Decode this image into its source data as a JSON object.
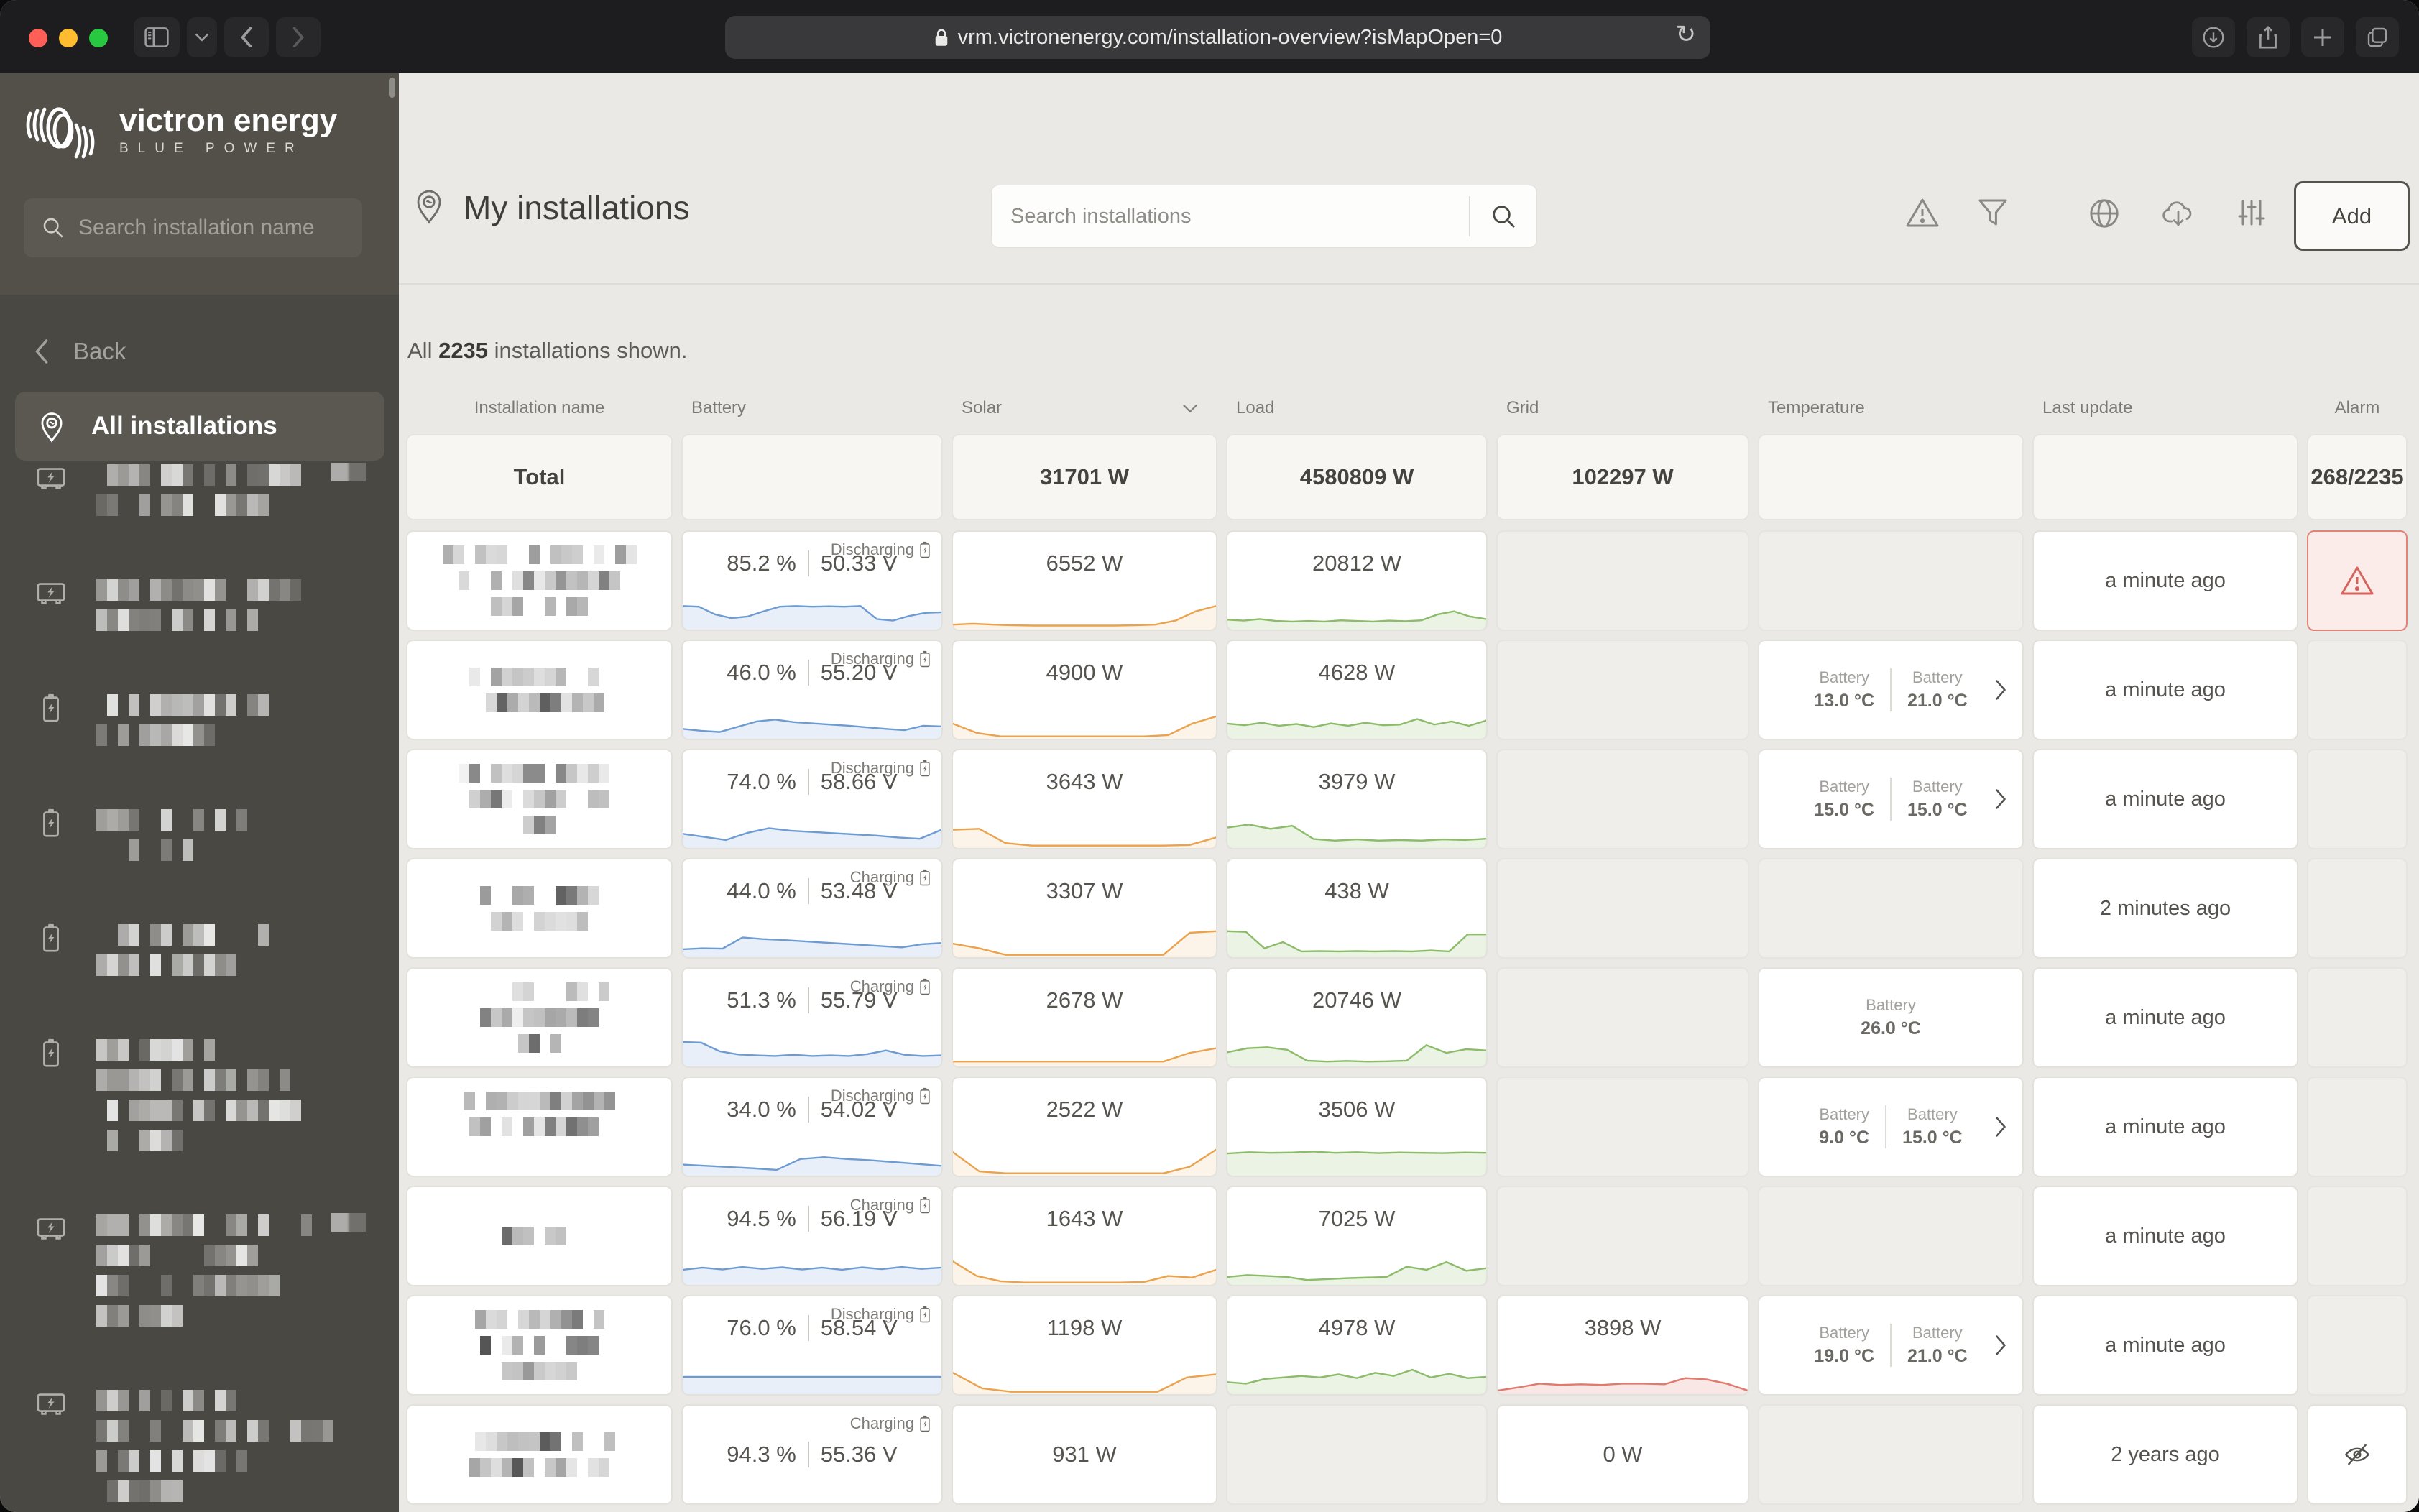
{
  "browser": {
    "url": "vrm.victronenergy.com/installation-overview?isMapOpen=0",
    "icons": [
      "sidebar-toggle",
      "chevron-down",
      "back",
      "forward",
      "lock",
      "reload",
      "download",
      "share",
      "new-tab",
      "tabs"
    ]
  },
  "sidebar": {
    "brand_name": "victron energy",
    "brand_tagline": "BLUE POWER",
    "search_placeholder": "Search installation name",
    "back_label": "Back",
    "all_label": "All installations",
    "items": [
      {
        "icon": "inverter",
        "badge": true,
        "lines": [
          0.82,
          0.6
        ]
      },
      {
        "icon": "inverter",
        "badge": false,
        "lines": [
          0.72,
          0.62
        ]
      },
      {
        "icon": "battery",
        "badge": false,
        "lines": [
          0.58,
          0.4
        ]
      },
      {
        "icon": "battery",
        "badge": false,
        "lines": [
          0.5,
          0.35
        ]
      },
      {
        "icon": "battery",
        "badge": false,
        "lines": [
          0.62,
          0.48
        ]
      },
      {
        "icon": "battery",
        "badge": false,
        "lines": [
          0.4,
          0.68,
          0.72,
          0.3
        ]
      },
      {
        "icon": "inverter",
        "badge": true,
        "lines": [
          0.78,
          0.55,
          0.62,
          0.28
        ]
      },
      {
        "icon": "inverter",
        "badge": false,
        "lines": [
          0.48,
          0.85,
          0.5,
          0.3
        ]
      }
    ]
  },
  "header": {
    "title": "My installations",
    "search_placeholder": "Search installations",
    "add_label": "Add",
    "icons": [
      "alarm-triangle",
      "filter-funnel",
      "globe",
      "cloud-download",
      "column-settings"
    ]
  },
  "summary": {
    "lead": "All",
    "count": "2235",
    "tail": "installations shown."
  },
  "colors": {
    "battery_line": "#6e9cd2",
    "battery_fill": "rgba(110,156,210,0.16)",
    "solar_line": "#eaa24d",
    "solar_fill": "rgba(234,162,77,0.12)",
    "load_line": "#8cbb6a",
    "load_fill": "rgba(140,187,106,0.18)",
    "grid_line": "#e07a6d",
    "grid_fill": "rgba(224,122,109,0.18)",
    "alarm_red": "#d4655c"
  },
  "table": {
    "columns": [
      "Installation name",
      "Battery",
      "Solar",
      "Load",
      "Grid",
      "Temperature",
      "Last update",
      "Alarm"
    ],
    "temp_label": "Battery",
    "total": {
      "label": "Total",
      "solar": "31701 W",
      "load": "4580809 W",
      "grid": "102297 W",
      "alarm": "268/2235"
    },
    "rows": [
      {
        "mosaic": [
          0.82,
          0.7,
          0.4
        ],
        "battery": {
          "state": "Discharging",
          "pct": "85.2 %",
          "volt": "50.33 V",
          "spark": [
            0.72,
            0.7,
            0.45,
            0.33,
            0.38,
            0.55,
            0.7,
            0.72,
            0.7,
            0.71,
            0.7,
            0.72,
            0.3,
            0.25,
            0.4,
            0.5,
            0.52
          ]
        },
        "solar": {
          "value": "6552 W",
          "spark": [
            0.12,
            0.15,
            0.12,
            0.1,
            0.09,
            0.09,
            0.09,
            0.09,
            0.09,
            0.1,
            0.12,
            0.25,
            0.55,
            0.72
          ]
        },
        "load": {
          "value": "20812 W",
          "spark": [
            0.28,
            0.25,
            0.3,
            0.24,
            0.22,
            0.24,
            0.22,
            0.26,
            0.24,
            0.22,
            0.25,
            0.23,
            0.26,
            0.45,
            0.55,
            0.38,
            0.3
          ]
        },
        "grid": null,
        "temp": null,
        "updated": "a minute ago",
        "alarm": "warning"
      },
      {
        "mosaic": [
          0.6,
          0.55
        ],
        "battery": {
          "state": "Discharging",
          "pct": "46.0 %",
          "volt": "55.20 V",
          "spark": [
            0.28,
            0.22,
            0.18,
            0.35,
            0.52,
            0.58,
            0.5,
            0.46,
            0.42,
            0.38,
            0.33,
            0.28,
            0.24,
            0.38,
            0.36
          ]
        },
        "solar": {
          "value": "4900 W",
          "spark": [
            0.45,
            0.15,
            0.04,
            0.04,
            0.04,
            0.04,
            0.04,
            0.04,
            0.04,
            0.08,
            0.45,
            0.68
          ]
        },
        "load": {
          "value": "4628 W",
          "spark": [
            0.45,
            0.4,
            0.48,
            0.38,
            0.44,
            0.34,
            0.46,
            0.38,
            0.48,
            0.4,
            0.42,
            0.6,
            0.42,
            0.52,
            0.38,
            0.55
          ]
        },
        "grid": null,
        "temp": {
          "t1": "13.0 °C",
          "t2": "21.0 °C",
          "chevron": true
        },
        "updated": "a minute ago",
        "alarm": "none"
      },
      {
        "mosaic": [
          0.66,
          0.6,
          0.12
        ],
        "battery": {
          "state": "Discharging",
          "pct": "74.0 %",
          "volt": "58.66 V",
          "spark": [
            0.42,
            0.32,
            0.22,
            0.45,
            0.6,
            0.52,
            0.48,
            0.44,
            0.4,
            0.36,
            0.3,
            0.26,
            0.55
          ]
        },
        "solar": {
          "value": "3643 W",
          "spark": [
            0.55,
            0.58,
            0.12,
            0.04,
            0.04,
            0.04,
            0.04,
            0.04,
            0.04,
            0.06,
            0.3
          ]
        },
        "load": {
          "value": "3979 W",
          "spark": [
            0.62,
            0.72,
            0.58,
            0.68,
            0.25,
            0.2,
            0.24,
            0.2,
            0.22,
            0.2,
            0.24,
            0.22,
            0.26
          ]
        },
        "grid": null,
        "temp": {
          "t1": "15.0 °C",
          "t2": "15.0 °C",
          "chevron": true
        },
        "updated": "a minute ago",
        "alarm": "none"
      },
      {
        "mosaic": [
          0.5,
          0.4
        ],
        "battery": {
          "state": "Charging",
          "pct": "44.0 %",
          "volt": "53.48 V",
          "spark": [
            0.22,
            0.25,
            0.24,
            0.6,
            0.55,
            0.52,
            0.48,
            0.44,
            0.4,
            0.36,
            0.32,
            0.28,
            0.38,
            0.42
          ]
        },
        "solar": {
          "value": "3307 W",
          "spark": [
            0.4,
            0.25,
            0.04,
            0.04,
            0.04,
            0.04,
            0.04,
            0.04,
            0.04,
            0.75,
            0.8
          ]
        },
        "load": {
          "value": "438 W",
          "spark": [
            0.8,
            0.78,
            0.25,
            0.45,
            0.15,
            0.16,
            0.15,
            0.16,
            0.15,
            0.16,
            0.15,
            0.18,
            0.15,
            0.7,
            0.7
          ]
        },
        "grid": null,
        "temp": null,
        "updated": "2 minutes ago",
        "alarm": "none"
      },
      {
        "mosaic": [
          0.58,
          0.6,
          0.2
        ],
        "battery": {
          "state": "Charging",
          "pct": "51.3 %",
          "volt": "55.79 V",
          "spark": [
            0.75,
            0.73,
            0.45,
            0.35,
            0.32,
            0.3,
            0.34,
            0.3,
            0.32,
            0.3,
            0.36,
            0.48,
            0.34,
            0.3,
            0.32
          ]
        },
        "solar": {
          "value": "2678 W",
          "spark": [
            0.12,
            0.12,
            0.12,
            0.12,
            0.12,
            0.12,
            0.12,
            0.12,
            0.12,
            0.4,
            0.55
          ]
        },
        "load": {
          "value": "20746 W",
          "spark": [
            0.42,
            0.55,
            0.58,
            0.5,
            0.15,
            0.12,
            0.14,
            0.12,
            0.13,
            0.15,
            0.65,
            0.4,
            0.52,
            0.48
          ]
        },
        "grid": null,
        "temp": {
          "t1": "26.0 °C",
          "t2": null,
          "chevron": false
        },
        "updated": "a minute ago",
        "alarm": "none"
      },
      {
        "mosaic": [
          0.62,
          0.58,
          0.1
        ],
        "battery": {
          "state": "Discharging",
          "pct": "34.0 %",
          "volt": "54.02 V",
          "spark": [
            0.32,
            0.28,
            0.24,
            0.2,
            0.15,
            0.5,
            0.56,
            0.5,
            0.46,
            0.4,
            0.34,
            0.28
          ]
        },
        "solar": {
          "value": "2522 W",
          "spark": [
            0.72,
            0.1,
            0.04,
            0.04,
            0.04,
            0.04,
            0.04,
            0.04,
            0.04,
            0.25,
            0.8
          ]
        },
        "load": {
          "value": "3506 W",
          "spark": [
            0.68,
            0.72,
            0.7,
            0.71,
            0.74,
            0.7,
            0.72,
            0.69,
            0.71,
            0.7,
            0.69,
            0.71,
            0.7
          ]
        },
        "grid": null,
        "temp": {
          "t1": "9.0 °C",
          "t2": "15.0 °C",
          "chevron": true
        },
        "updated": "a minute ago",
        "alarm": "none"
      },
      {
        "mosaic": [
          0.3
        ],
        "battery": {
          "state": "Charging",
          "pct": "94.5 %",
          "volt": "56.19 V",
          "spark": [
            0.45,
            0.52,
            0.46,
            0.54,
            0.48,
            0.53,
            0.46,
            0.52,
            0.45,
            0.53,
            0.47,
            0.54,
            0.48,
            0.52
          ]
        },
        "solar": {
          "value": "1643 W",
          "spark": [
            0.72,
            0.25,
            0.08,
            0.04,
            0.04,
            0.04,
            0.04,
            0.04,
            0.06,
            0.25,
            0.2,
            0.45
          ]
        },
        "load": {
          "value": "7025 W",
          "spark": [
            0.22,
            0.28,
            0.25,
            0.22,
            0.12,
            0.15,
            0.18,
            0.2,
            0.22,
            0.55,
            0.45,
            0.7,
            0.42,
            0.5
          ]
        },
        "grid": null,
        "temp": null,
        "updated": "a minute ago",
        "alarm": "none"
      },
      {
        "mosaic": [
          0.55,
          0.52,
          0.3
        ],
        "battery": {
          "state": "Discharging",
          "pct": "76.0 %",
          "volt": "58.54 V",
          "spark": [
            0.52,
            0.52,
            0.52,
            0.52,
            0.52,
            0.52,
            0.52,
            0.52,
            0.52,
            0.52
          ]
        },
        "solar": {
          "value": "1198 W",
          "spark": [
            0.65,
            0.15,
            0.04,
            0.04,
            0.04,
            0.04,
            0.04,
            0.04,
            0.5,
            0.6
          ]
        },
        "load": {
          "value": "4978 W",
          "spark": [
            0.35,
            0.3,
            0.45,
            0.5,
            0.55,
            0.5,
            0.6,
            0.48,
            0.65,
            0.55,
            0.75,
            0.5,
            0.62,
            0.48,
            0.52
          ]
        },
        "grid": {
          "value": "3898 W",
          "spark": [
            0.08,
            0.18,
            0.3,
            0.26,
            0.28,
            0.26,
            0.3,
            0.3,
            0.28,
            0.48,
            0.44,
            0.3,
            0.08
          ]
        },
        "temp": {
          "t1": "19.0 °C",
          "t2": "21.0 °C",
          "chevron": true
        },
        "updated": "a minute ago",
        "alarm": "none"
      },
      {
        "mosaic": [
          0.64,
          0.58
        ],
        "battery": {
          "state": "Charging",
          "pct": "94.3 %",
          "volt": "55.36 V",
          "spark": null
        },
        "solar": {
          "value": "931 W",
          "spark": null
        },
        "load": null,
        "grid": {
          "value": "0 W",
          "spark": null
        },
        "temp": null,
        "updated": "2 years ago",
        "alarm": "muted"
      }
    ]
  }
}
